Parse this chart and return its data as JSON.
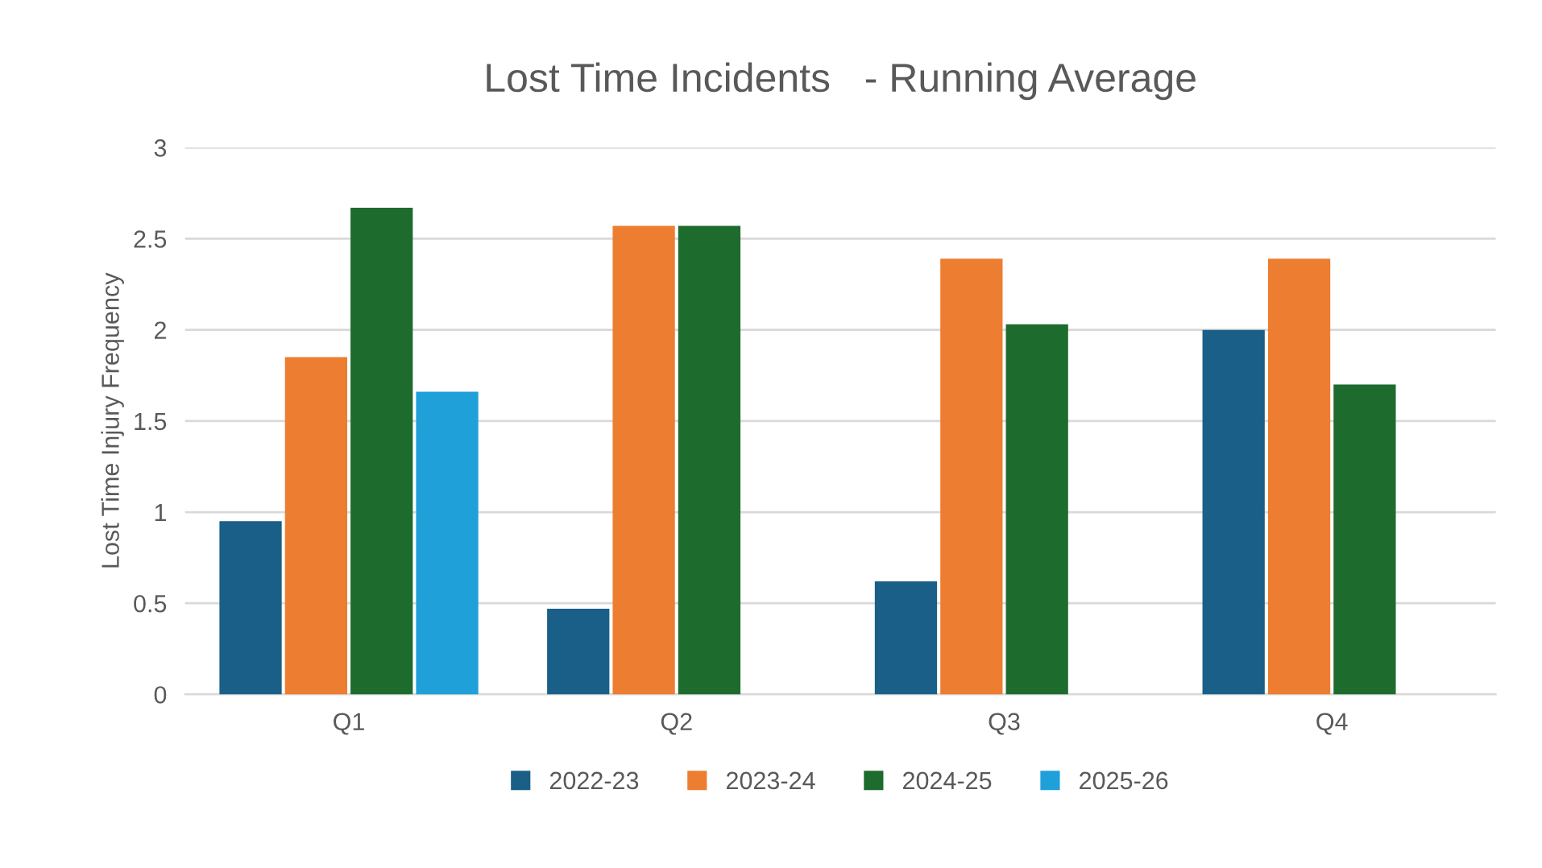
{
  "chart_data": {
    "type": "bar",
    "title": "Lost Time Incidents   - Running Average",
    "ylabel": "Lost Time Injury Frequency",
    "categories": [
      "Q1",
      "Q2",
      "Q3",
      "Q4"
    ],
    "series": [
      {
        "name": "2022-23",
        "color": "#1a5f87",
        "values": [
          0.95,
          0.47,
          0.62,
          2.0
        ]
      },
      {
        "name": "2023-24",
        "color": "#ed7d31",
        "values": [
          1.85,
          2.57,
          2.39,
          2.39
        ]
      },
      {
        "name": "2024-25",
        "color": "#1e6b2e",
        "values": [
          2.67,
          2.57,
          2.03,
          1.7
        ]
      },
      {
        "name": "2025-26",
        "color": "#1fa0d8",
        "values": [
          1.66,
          null,
          null,
          null
        ]
      }
    ],
    "ylim": [
      0,
      3
    ],
    "yticks": [
      0,
      0.5,
      1,
      1.5,
      2,
      2.5,
      3
    ],
    "grid": "y",
    "legend": "bottom"
  }
}
